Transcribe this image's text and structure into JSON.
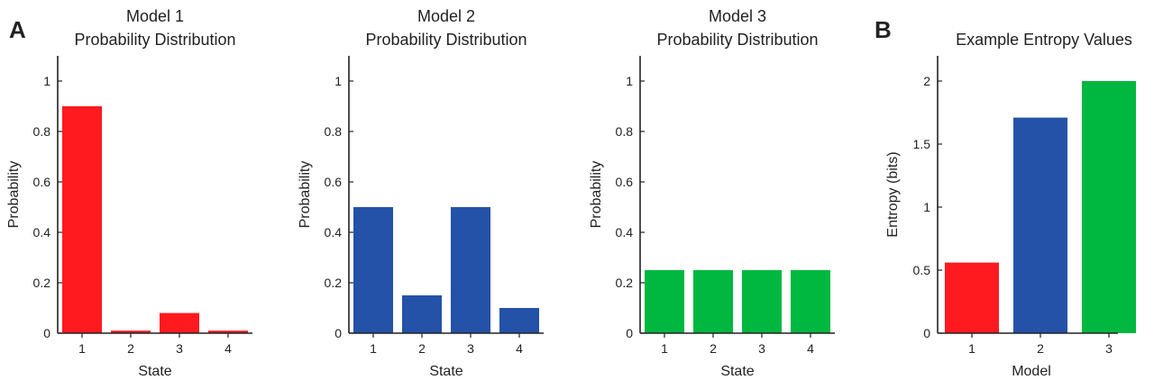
{
  "panel_labels": [
    "A",
    "B"
  ],
  "colors": {
    "model1": "#ff1a1f",
    "model2": "#2452a8",
    "model3": "#00b840"
  },
  "chart_data": [
    {
      "type": "bar",
      "panel": "A",
      "title": [
        "Model 1",
        "Probability Distribution"
      ],
      "xlabel": "State",
      "ylabel": "Probability",
      "categories": [
        "1",
        "2",
        "3",
        "4"
      ],
      "values": [
        0.9,
        0.01,
        0.08,
        0.01
      ],
      "color": "#ff1a1f",
      "ylim": [
        0,
        1.1
      ],
      "yticks": [
        0,
        0.2,
        0.4,
        0.6,
        0.8,
        1
      ],
      "ytick_labels": [
        "0",
        "0.2",
        "0.4",
        "0.6",
        "0.8",
        "1"
      ],
      "grid": false
    },
    {
      "type": "bar",
      "panel": "A",
      "title": [
        "Model 2",
        "Probability Distribution"
      ],
      "xlabel": "State",
      "ylabel": "Probability",
      "categories": [
        "1",
        "2",
        "3",
        "4"
      ],
      "values": [
        0.5,
        0.15,
        0.5,
        0.1
      ],
      "color": "#2452a8",
      "ylim": [
        0,
        1.1
      ],
      "yticks": [
        0,
        0.2,
        0.4,
        0.6,
        0.8,
        1
      ],
      "ytick_labels": [
        "0",
        "0.2",
        "0.4",
        "0.6",
        "0.8",
        "1"
      ],
      "grid": false
    },
    {
      "type": "bar",
      "panel": "A",
      "title": [
        "Model 3",
        "Probability Distribution"
      ],
      "xlabel": "State",
      "ylabel": "Probability",
      "categories": [
        "1",
        "2",
        "3",
        "4"
      ],
      "values": [
        0.25,
        0.25,
        0.25,
        0.25
      ],
      "color": "#00b840",
      "ylim": [
        0,
        1.1
      ],
      "yticks": [
        0,
        0.2,
        0.4,
        0.6,
        0.8,
        1
      ],
      "ytick_labels": [
        "0",
        "0.2",
        "0.4",
        "0.6",
        "0.8",
        "1"
      ],
      "grid": false
    },
    {
      "type": "bar",
      "panel": "B",
      "title": [
        "Example Entropy Values"
      ],
      "xlabel": "Model",
      "ylabel": "Entropy (bits)",
      "categories": [
        "1",
        "2",
        "3"
      ],
      "values": [
        0.56,
        1.71,
        2.0
      ],
      "colors": [
        "#ff1a1f",
        "#2452a8",
        "#00b840"
      ],
      "ylim": [
        0,
        2.2
      ],
      "yticks": [
        0,
        0.5,
        1,
        1.5,
        2
      ],
      "ytick_labels": [
        "0",
        "0.5",
        "1",
        "1.5",
        "2"
      ],
      "grid": false
    }
  ]
}
